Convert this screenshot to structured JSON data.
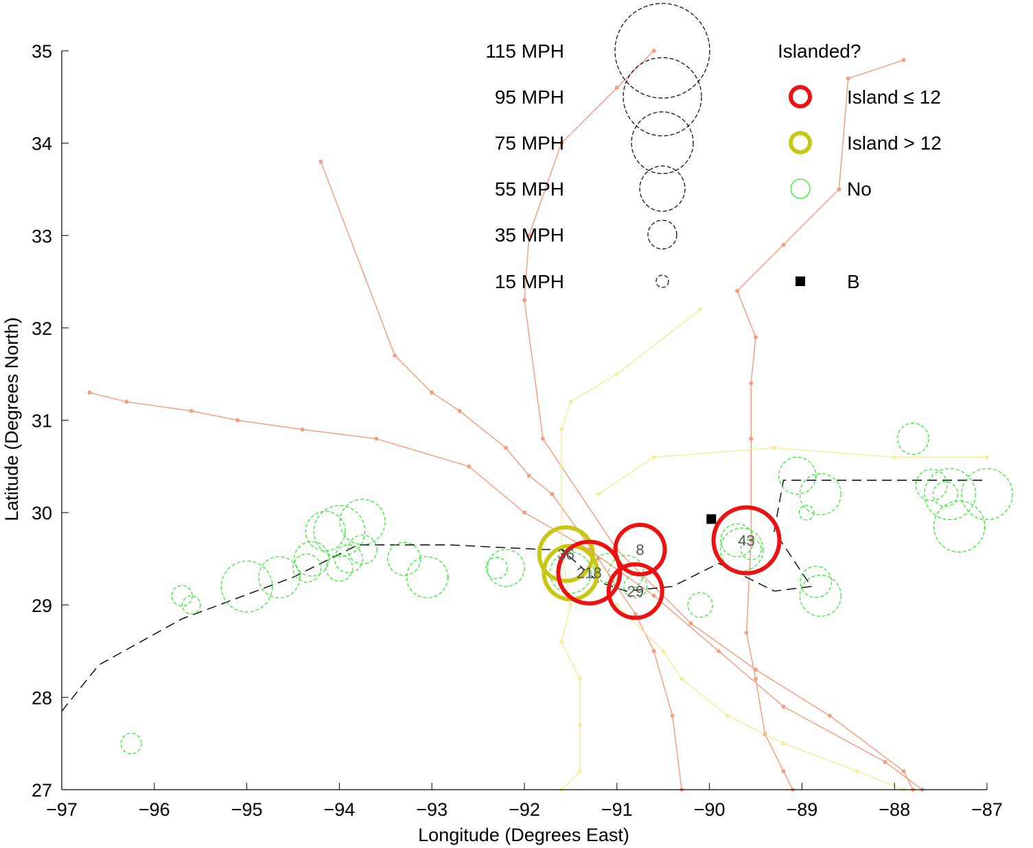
{
  "chart_data": {
    "type": "scatter",
    "xlabel": "Longitude (Degrees East)",
    "ylabel": "Latitude (Degrees North)",
    "xlim": [
      -97,
      -87
    ],
    "ylim": [
      27,
      35
    ],
    "xticks": [
      -97,
      -96,
      -95,
      -94,
      -93,
      -92,
      -91,
      -90,
      -89,
      -88,
      -87
    ],
    "yticks": [
      27,
      28,
      29,
      30,
      31,
      32,
      33,
      34,
      35
    ],
    "grid": false,
    "colors": {
      "island_le_12": "#ee1111",
      "island_gt_12": "#c8c814",
      "no": "#22ee22",
      "track_orange": "#f4a080",
      "track_yellow": "#f2ee9a",
      "path_dash": "#000000"
    },
    "size_legend": {
      "entries": [
        {
          "label": "115 MPH",
          "mph": 115
        },
        {
          "label": "95 MPH",
          "mph": 95
        },
        {
          "label": "75 MPH",
          "mph": 75
        },
        {
          "label": "55 MPH",
          "mph": 55
        },
        {
          "label": "35 MPH",
          "mph": 35
        },
        {
          "label": "15 MPH",
          "mph": 15
        }
      ]
    },
    "islanded_legend": {
      "title": "Islanded?",
      "entries": [
        {
          "label": "Island ≤ 12",
          "category": "island_le_12"
        },
        {
          "label": "Island > 12",
          "category": "island_gt_12"
        },
        {
          "label": "No",
          "category": "no"
        },
        {
          "label": "B",
          "category": "marker_b"
        }
      ]
    },
    "events": [
      {
        "lon": -96.25,
        "lat": 27.5,
        "mph": 25,
        "category": "no",
        "label": ""
      },
      {
        "lon": -95.7,
        "lat": 29.1,
        "mph": 25,
        "category": "no",
        "label": ""
      },
      {
        "lon": -95.6,
        "lat": 29.0,
        "mph": 22,
        "category": "no",
        "label": ""
      },
      {
        "lon": -95.0,
        "lat": 29.2,
        "mph": 62,
        "category": "no",
        "label": ""
      },
      {
        "lon": -94.65,
        "lat": 29.3,
        "mph": 50,
        "category": "no",
        "label": ""
      },
      {
        "lon": -94.35,
        "lat": 29.4,
        "mph": 34,
        "category": "no",
        "label": ""
      },
      {
        "lon": -94.3,
        "lat": 29.5,
        "mph": 42,
        "category": "no",
        "label": ""
      },
      {
        "lon": -94.15,
        "lat": 29.8,
        "mph": 48,
        "category": "no",
        "label": ""
      },
      {
        "lon": -94.0,
        "lat": 29.8,
        "mph": 62,
        "category": "no",
        "label": ""
      },
      {
        "lon": -94.0,
        "lat": 29.4,
        "mph": 32,
        "category": "no",
        "label": ""
      },
      {
        "lon": -93.9,
        "lat": 29.5,
        "mph": 34,
        "category": "no",
        "label": ""
      },
      {
        "lon": -93.75,
        "lat": 29.9,
        "mph": 55,
        "category": "no",
        "label": ""
      },
      {
        "lon": -93.75,
        "lat": 29.6,
        "mph": 35,
        "category": "no",
        "label": ""
      },
      {
        "lon": -93.3,
        "lat": 29.5,
        "mph": 40,
        "category": "no",
        "label": ""
      },
      {
        "lon": -93.05,
        "lat": 29.3,
        "mph": 50,
        "category": "no",
        "label": ""
      },
      {
        "lon": -92.3,
        "lat": 29.4,
        "mph": 26,
        "category": "no",
        "label": ""
      },
      {
        "lon": -92.2,
        "lat": 29.4,
        "mph": 45,
        "category": "no",
        "label": ""
      },
      {
        "lon": -91.5,
        "lat": 29.35,
        "mph": 50,
        "category": "no",
        "label": ""
      },
      {
        "lon": -91.1,
        "lat": 29.4,
        "mph": 35,
        "category": "no",
        "label": ""
      },
      {
        "lon": -90.9,
        "lat": 29.35,
        "mph": 42,
        "category": "no",
        "label": ""
      },
      {
        "lon": -90.8,
        "lat": 29.2,
        "mph": 28,
        "category": "no",
        "label": ""
      },
      {
        "lon": -90.1,
        "lat": 29.0,
        "mph": 30,
        "category": "no",
        "label": ""
      },
      {
        "lon": -89.7,
        "lat": 29.7,
        "mph": 40,
        "category": "no",
        "label": ""
      },
      {
        "lon": -89.65,
        "lat": 29.6,
        "mph": 52,
        "category": "no",
        "label": ""
      },
      {
        "lon": -89.55,
        "lat": 29.6,
        "mph": 25,
        "category": "no",
        "label": ""
      },
      {
        "lon": -89.05,
        "lat": 30.4,
        "mph": 45,
        "category": "no",
        "label": ""
      },
      {
        "lon": -88.95,
        "lat": 30.0,
        "mph": 18,
        "category": "no",
        "label": ""
      },
      {
        "lon": -88.85,
        "lat": 29.25,
        "mph": 38,
        "category": "no",
        "label": ""
      },
      {
        "lon": -88.8,
        "lat": 29.1,
        "mph": 50,
        "category": "no",
        "label": ""
      },
      {
        "lon": -88.8,
        "lat": 30.2,
        "mph": 50,
        "category": "no",
        "label": ""
      },
      {
        "lon": -87.8,
        "lat": 30.8,
        "mph": 38,
        "category": "no",
        "label": ""
      },
      {
        "lon": -87.6,
        "lat": 30.3,
        "mph": 38,
        "category": "no",
        "label": ""
      },
      {
        "lon": -87.45,
        "lat": 30.2,
        "mph": 30,
        "category": "no",
        "label": ""
      },
      {
        "lon": -87.4,
        "lat": 30.2,
        "mph": 62,
        "category": "no",
        "label": ""
      },
      {
        "lon": -87.0,
        "lat": 30.2,
        "mph": 62,
        "category": "no",
        "label": ""
      },
      {
        "lon": -87.3,
        "lat": 29.85,
        "mph": 62,
        "category": "no",
        "label": ""
      },
      {
        "lon": -91.55,
        "lat": 29.55,
        "mph": 65,
        "category": "island_gt_12",
        "label": "36"
      },
      {
        "lon": -91.5,
        "lat": 29.35,
        "mph": 65,
        "category": "island_gt_12",
        "label": ""
      },
      {
        "lon": -91.3,
        "lat": 29.35,
        "mph": 75,
        "category": "island_le_12",
        "label": "218"
      },
      {
        "lon": -90.75,
        "lat": 29.6,
        "mph": 60,
        "category": "island_le_12",
        "label": "8"
      },
      {
        "lon": -90.8,
        "lat": 29.15,
        "mph": 65,
        "category": "island_le_12",
        "label": "29"
      },
      {
        "lon": -89.6,
        "lat": 29.7,
        "mph": 80,
        "category": "island_le_12",
        "label": "43"
      }
    ],
    "marker_b": {
      "lon": -89.98,
      "lat": 29.93
    },
    "dashed_path": [
      [
        -97.0,
        27.85
      ],
      [
        -96.6,
        28.35
      ],
      [
        -95.7,
        28.85
      ],
      [
        -94.5,
        29.3
      ],
      [
        -93.8,
        29.65
      ],
      [
        -92.8,
        29.65
      ],
      [
        -91.8,
        29.6
      ],
      [
        -91.6,
        29.6
      ],
      [
        -91.2,
        29.25
      ],
      [
        -90.9,
        29.15
      ],
      [
        -90.4,
        29.2
      ],
      [
        -89.9,
        29.45
      ],
      [
        -89.6,
        29.3
      ],
      [
        -89.3,
        29.15
      ],
      [
        -88.9,
        29.2
      ],
      [
        -89.3,
        29.8
      ],
      [
        -89.2,
        30.35
      ],
      [
        -88.5,
        30.35
      ],
      [
        -87.0,
        30.35
      ]
    ],
    "tracks": [
      {
        "color": "track_orange",
        "points": [
          [
            -96.7,
            31.3
          ],
          [
            -96.3,
            31.2
          ],
          [
            -95.6,
            31.1
          ],
          [
            -95.1,
            31.0
          ],
          [
            -94.4,
            30.9
          ],
          [
            -93.6,
            30.8
          ],
          [
            -92.6,
            30.5
          ],
          [
            -92.0,
            30.0
          ],
          [
            -91.3,
            29.6
          ],
          [
            -90.6,
            29.1
          ],
          [
            -89.9,
            28.5
          ],
          [
            -89.2,
            27.9
          ],
          [
            -88.1,
            27.3
          ],
          [
            -87.7,
            27.0
          ]
        ]
      },
      {
        "color": "track_orange",
        "points": [
          [
            -94.2,
            33.8
          ],
          [
            -93.4,
            31.7
          ],
          [
            -93.0,
            31.3
          ],
          [
            -92.7,
            31.1
          ],
          [
            -92.2,
            30.7
          ],
          [
            -91.95,
            30.4
          ],
          [
            -91.7,
            30.2
          ],
          [
            -91.2,
            29.5
          ],
          [
            -90.8,
            28.9
          ],
          [
            -90.6,
            28.5
          ],
          [
            -90.4,
            27.8
          ],
          [
            -90.3,
            27.0
          ]
        ]
      },
      {
        "color": "track_orange",
        "points": [
          [
            -90.6,
            35.0
          ],
          [
            -91.0,
            34.6
          ],
          [
            -91.6,
            34.0
          ],
          [
            -91.95,
            33.0
          ],
          [
            -92.0,
            32.3
          ],
          [
            -91.8,
            30.8
          ],
          [
            -91.0,
            29.6
          ],
          [
            -90.2,
            28.8
          ],
          [
            -89.5,
            28.3
          ],
          [
            -88.7,
            27.8
          ],
          [
            -87.9,
            27.2
          ],
          [
            -87.8,
            27.0
          ]
        ]
      },
      {
        "color": "track_orange",
        "points": [
          [
            -87.9,
            34.9
          ],
          [
            -88.5,
            34.7
          ],
          [
            -88.6,
            33.5
          ],
          [
            -89.2,
            32.9
          ],
          [
            -89.7,
            32.4
          ],
          [
            -89.5,
            31.9
          ],
          [
            -89.55,
            31.4
          ],
          [
            -89.55,
            30.8
          ],
          [
            -89.55,
            29.7
          ],
          [
            -89.6,
            28.7
          ],
          [
            -89.5,
            28.2
          ],
          [
            -89.4,
            27.6
          ],
          [
            -89.2,
            27.2
          ],
          [
            -89.1,
            27.0
          ]
        ]
      },
      {
        "color": "track_yellow",
        "points": [
          [
            -90.1,
            32.2
          ],
          [
            -91.0,
            31.5
          ],
          [
            -91.5,
            31.2
          ],
          [
            -91.6,
            30.9
          ],
          [
            -91.6,
            30.5
          ],
          [
            -91.6,
            29.6
          ],
          [
            -91.5,
            29.0
          ],
          [
            -91.6,
            28.6
          ],
          [
            -91.4,
            28.2
          ],
          [
            -91.4,
            27.7
          ],
          [
            -91.4,
            27.2
          ],
          [
            -91.6,
            27.0
          ]
        ]
      },
      {
        "color": "track_yellow",
        "points": [
          [
            -91.0,
            29.0
          ],
          [
            -90.5,
            28.5
          ],
          [
            -90.3,
            28.2
          ],
          [
            -89.8,
            27.8
          ],
          [
            -89.2,
            27.5
          ],
          [
            -88.4,
            27.2
          ],
          [
            -87.9,
            27.0
          ]
        ]
      },
      {
        "color": "track_yellow",
        "points": [
          [
            -91.2,
            30.2
          ],
          [
            -90.6,
            30.6
          ],
          [
            -89.3,
            30.7
          ],
          [
            -88.0,
            30.6
          ],
          [
            -87.0,
            30.6
          ]
        ]
      }
    ],
    "point_labels": [
      "36",
      "218",
      "8",
      "29",
      "43"
    ]
  }
}
